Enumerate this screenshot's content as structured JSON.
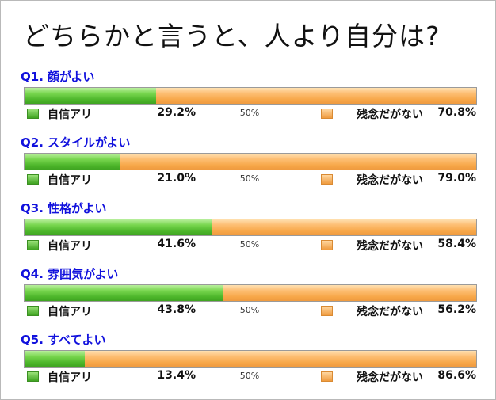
{
  "title": "どちらかと言うと、人より自分は?",
  "chart_data": {
    "type": "bar",
    "orientation": "horizontal",
    "stacked": true,
    "title": "どちらかと言うと、人より自分は?",
    "categories": [
      "Q1. 顔がよい",
      "Q2. スタイルがよい",
      "Q3. 性格がよい",
      "Q4. 雰囲気がよい",
      "Q5. すべてよい"
    ],
    "series": [
      {
        "name": "自信アリ",
        "values": [
          29.2,
          21.0,
          41.6,
          43.8,
          13.4
        ],
        "labels": [
          "29.2%",
          "21.0%",
          "41.6%",
          "43.8%",
          "13.4%"
        ],
        "color": "#5cc237"
      },
      {
        "name": "残念だがない",
        "values": [
          70.8,
          79.0,
          58.4,
          56.2,
          86.6
        ],
        "labels": [
          "70.8%",
          "79.0%",
          "58.4%",
          "56.2%",
          "86.6%"
        ],
        "color": "#f9ae55"
      }
    ],
    "mid_label": "50%",
    "xlim": [
      0,
      100
    ],
    "grid": false,
    "legend": "below-each-bar"
  }
}
